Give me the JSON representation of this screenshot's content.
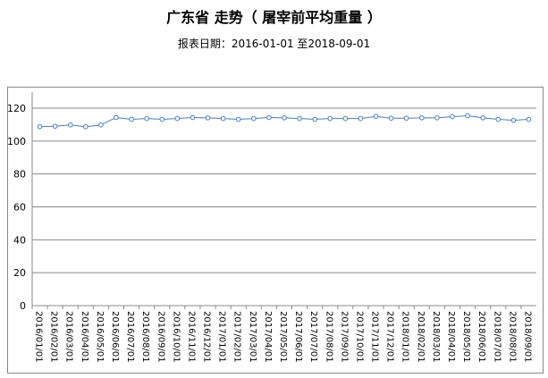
{
  "chart_data": {
    "type": "line",
    "title": "广东省 走势（ 屠宰前平均重量 ）",
    "subtitle": "报表日期：2016-01-01 至2018-09-01",
    "xlabel": "",
    "ylabel": "",
    "ylim": [
      0,
      120
    ],
    "yticks": [
      0,
      20,
      40,
      60,
      80,
      100,
      120
    ],
    "grid": true,
    "legend": "none",
    "color": "#4a7ebb",
    "categories": [
      "2016/01/01",
      "2016/02/01",
      "2016/03/01",
      "2016/04/01",
      "2016/05/01",
      "2016/06/01",
      "2016/07/01",
      "2016/08/01",
      "2016/09/01",
      "2016/10/01",
      "2016/11/01",
      "2016/12/01",
      "2017/01/01",
      "2017/02/01",
      "2017/03/01",
      "2017/04/01",
      "2017/05/01",
      "2017/06/01",
      "2017/07/01",
      "2017/08/01",
      "2017/09/01",
      "2017/10/01",
      "2017/11/01",
      "2017/12/01",
      "2018/01/01",
      "2018/02/01",
      "2018/03/01",
      "2018/04/01",
      "2018/05/01",
      "2018/06/01",
      "2018/07/01",
      "2018/08/01",
      "2018/09/01"
    ],
    "values": [
      108.7,
      109.0,
      109.8,
      108.7,
      109.8,
      114.3,
      113.2,
      113.7,
      113.2,
      113.7,
      114.3,
      114.1,
      113.7,
      113.2,
      113.7,
      114.3,
      114.1,
      113.7,
      113.2,
      113.7,
      113.7,
      113.7,
      115.0,
      113.9,
      113.9,
      114.1,
      114.1,
      114.8,
      115.4,
      114.1,
      113.2,
      112.6,
      113.2
    ]
  }
}
